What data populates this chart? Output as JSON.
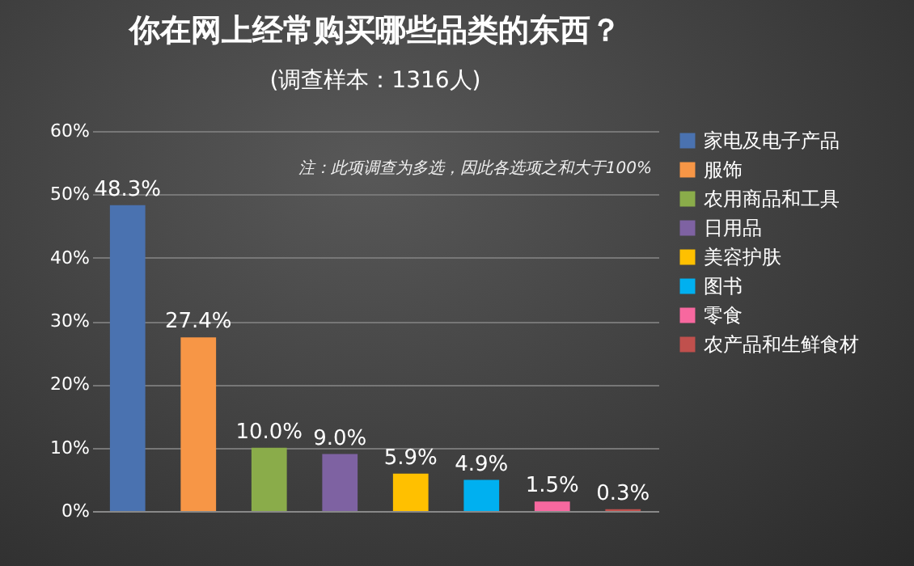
{
  "chart_data": {
    "type": "bar",
    "title": "你在网上经常购买哪些品类的东西？",
    "subtitle": "(调查样本：1316人)",
    "categories": [
      null
    ],
    "series": [
      {
        "name": "家电及电子产品",
        "color": "#4a72b0",
        "values": [
          48.3
        ],
        "value_labels": [
          "48.3%"
        ]
      },
      {
        "name": "服饰",
        "color": "#f79646",
        "values": [
          27.4
        ],
        "value_labels": [
          "27.4%"
        ]
      },
      {
        "name": "农用商品和工具",
        "color": "#8aac4a",
        "values": [
          10.0
        ],
        "value_labels": [
          "10.0%"
        ]
      },
      {
        "name": "日用品",
        "color": "#7e62a2",
        "values": [
          9.0
        ],
        "value_labels": [
          "9.0%"
        ]
      },
      {
        "name": "美容护肤",
        "color": "#ffc000",
        "values": [
          5.9
        ],
        "value_labels": [
          "5.9%"
        ]
      },
      {
        "name": "图书",
        "color": "#00b0f0",
        "values": [
          4.9
        ],
        "value_labels": [
          "4.9%"
        ]
      },
      {
        "name": "零食",
        "color": "#f7689f",
        "values": [
          1.5
        ],
        "value_labels": [
          "1.5%"
        ]
      },
      {
        "name": "农产品和生鲜食材",
        "color": "#c0504d",
        "values": [
          0.3
        ],
        "value_labels": [
          "0.3%"
        ]
      }
    ],
    "ylim": [
      0,
      60
    ],
    "yticks": [
      {
        "value": 0,
        "label": "0%"
      },
      {
        "value": 10,
        "label": "10%"
      },
      {
        "value": 20,
        "label": "20%"
      },
      {
        "value": 30,
        "label": "30%"
      },
      {
        "value": 40,
        "label": "40%"
      },
      {
        "value": 50,
        "label": "50%"
      },
      {
        "value": 60,
        "label": "60%"
      }
    ],
    "grid": "y",
    "legend": "right",
    "tick_labels": "y",
    "annotations": [
      "注：此项调查为多选，因此各选项之和大于100%"
    ]
  }
}
